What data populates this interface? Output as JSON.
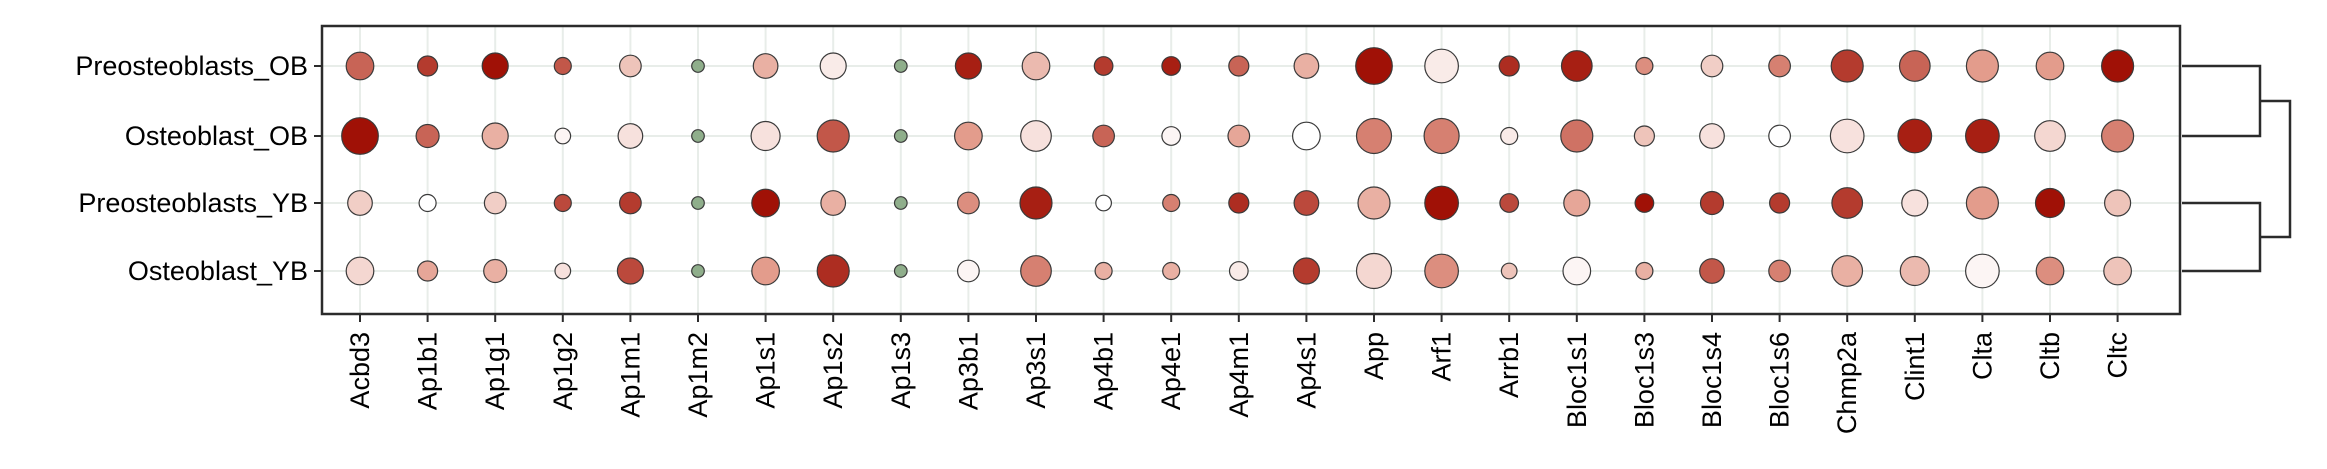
{
  "chart_data": {
    "type": "dot",
    "title": "",
    "xlabel": "",
    "ylabel": "",
    "grid": true,
    "legend": "none",
    "rows": [
      "Preosteoblasts_OB",
      "Osteoblast_OB",
      "Preosteoblasts_YB",
      "Osteoblast_YB"
    ],
    "columns": [
      "Acbd3",
      "Ap1b1",
      "Ap1g1",
      "Ap1g2",
      "Ap1m1",
      "Ap1m2",
      "Ap1s1",
      "Ap1s2",
      "Ap1s3",
      "Ap3b1",
      "Ap3s1",
      "Ap4b1",
      "Ap4e1",
      "Ap4m1",
      "Ap4s1",
      "App",
      "Arf1",
      "Arrb1",
      "Bloc1s1",
      "Bloc1s3",
      "Bloc1s4",
      "Bloc1s6",
      "Chmp2a",
      "Clint1",
      "Clta",
      "Cltb",
      "Cltc"
    ],
    "size": [
      [
        0.65,
        0.4,
        0.6,
        0.3,
        0.45,
        0.15,
        0.55,
        0.6,
        0.15,
        0.6,
        0.65,
        0.35,
        0.35,
        0.4,
        0.55,
        0.95,
        0.85,
        0.4,
        0.75,
        0.3,
        0.45,
        0.45,
        0.8,
        0.75,
        0.8,
        0.65,
        0.8
      ],
      [
        0.95,
        0.5,
        0.6,
        0.25,
        0.55,
        0.15,
        0.7,
        0.8,
        0.15,
        0.65,
        0.75,
        0.45,
        0.35,
        0.45,
        0.65,
        0.9,
        0.9,
        0.3,
        0.8,
        0.4,
        0.55,
        0.45,
        0.85,
        0.85,
        0.85,
        0.75,
        0.8
      ],
      [
        0.55,
        0.3,
        0.45,
        0.3,
        0.45,
        0.15,
        0.65,
        0.55,
        0.15,
        0.45,
        0.8,
        0.25,
        0.3,
        0.4,
        0.55,
        0.8,
        0.85,
        0.35,
        0.6,
        0.35,
        0.5,
        0.4,
        0.75,
        0.6,
        0.8,
        0.7,
        0.6
      ],
      [
        0.65,
        0.4,
        0.5,
        0.25,
        0.6,
        0.15,
        0.65,
        0.8,
        0.15,
        0.45,
        0.75,
        0.3,
        0.3,
        0.35,
        0.6,
        0.9,
        0.85,
        0.25,
        0.65,
        0.3,
        0.55,
        0.45,
        0.75,
        0.7,
        0.85,
        0.65,
        0.65
      ]
    ],
    "color": [
      [
        0.7,
        0.85,
        1.0,
        0.75,
        0.3,
        0.4,
        0.4,
        0.1,
        0.4,
        0.95,
        0.35,
        0.85,
        0.95,
        0.7,
        0.4,
        1.0,
        0.1,
        0.9,
        0.95,
        0.55,
        0.25,
        0.6,
        0.85,
        0.7,
        0.5,
        0.5,
        1.0
      ],
      [
        1.0,
        0.7,
        0.4,
        0.05,
        0.15,
        0.4,
        0.15,
        0.75,
        0.4,
        0.5,
        0.15,
        0.7,
        0.05,
        0.45,
        0.0,
        0.6,
        0.6,
        0.1,
        0.65,
        0.3,
        0.15,
        0.0,
        0.15,
        0.95,
        0.95,
        0.2,
        0.6
      ],
      [
        0.25,
        0.0,
        0.25,
        0.8,
        0.85,
        0.4,
        1.0,
        0.4,
        0.4,
        0.55,
        0.95,
        0.0,
        0.6,
        0.9,
        0.8,
        0.4,
        1.0,
        0.8,
        0.45,
        1.0,
        0.85,
        0.85,
        0.85,
        0.15,
        0.5,
        1.0,
        0.3
      ],
      [
        0.2,
        0.45,
        0.4,
        0.15,
        0.8,
        0.4,
        0.5,
        0.9,
        0.4,
        0.05,
        0.6,
        0.4,
        0.4,
        0.1,
        0.85,
        0.2,
        0.55,
        0.3,
        0.05,
        0.4,
        0.75,
        0.6,
        0.4,
        0.35,
        0.05,
        0.55,
        0.3
      ]
    ],
    "dendrogram": [
      [
        "Preosteoblasts_OB",
        "Osteoblast_OB"
      ],
      [
        "Preosteoblasts_YB",
        "Osteoblast_YB"
      ]
    ],
    "colors": {
      "low": "#ffffff",
      "mid": "#e39c8c",
      "high": "#a01106",
      "small_dot": "#8fae8b",
      "grid": "#e8ede9",
      "outline": "#3a3a3a",
      "frame": "#2b2b2b"
    }
  }
}
